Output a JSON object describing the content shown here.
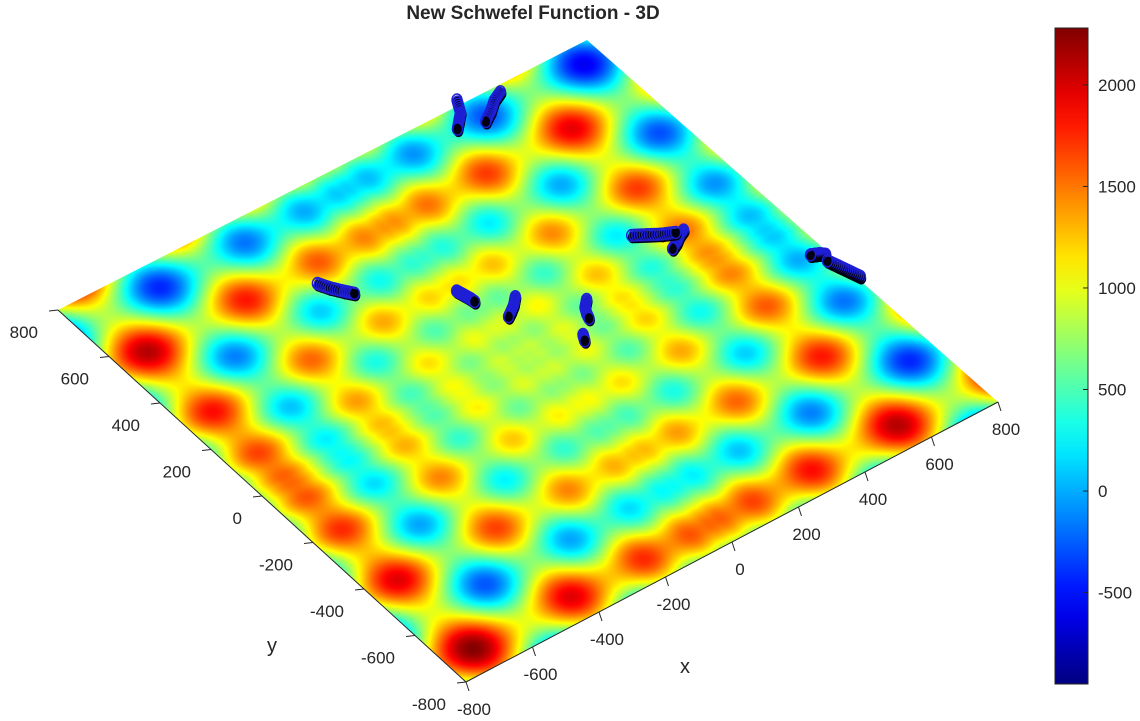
{
  "chart_data": {
    "type": "surface3d",
    "title": "New Schwefel Function - 3D",
    "xlabel": "x",
    "ylabel": "y",
    "xlim": [
      -800,
      800
    ],
    "ylim": [
      -800,
      800
    ],
    "xticks": [
      "-800",
      "-600",
      "-400",
      "-200",
      "0",
      "200",
      "400",
      "600",
      "800"
    ],
    "yticks": [
      "-800",
      "-600",
      "-400",
      "-200",
      "0",
      "200",
      "400",
      "600",
      "800"
    ],
    "colorbar": {
      "colormap": "jet",
      "range": [
        -950,
        2280
      ],
      "ticks": [
        "-500",
        "0",
        "500",
        "1000",
        "1500",
        "2000"
      ]
    },
    "view": "top-down, rotated 45°",
    "function": "f(x,y) = 837.9658 - x·sin(√|x|) - y·sin(√|y|)",
    "marker_color": "#1f1fd6",
    "trajectories": [
      {
        "points": [
          [
            400,
            800
          ],
          [
            380,
            760
          ],
          [
            360,
            740
          ],
          [
            340,
            720
          ]
        ]
      },
      {
        "points": [
          [
            500,
            760
          ],
          [
            470,
            745
          ],
          [
            440,
            720
          ],
          [
            410,
            700
          ]
        ]
      },
      {
        "points": [
          [
            -250,
            500
          ],
          [
            -235,
            470
          ],
          [
            -215,
            440
          ],
          [
            -200,
            420
          ]
        ]
      },
      {
        "points": [
          [
            0,
            280
          ],
          [
            5,
            260
          ],
          [
            10,
            240
          ],
          [
            12,
            225
          ]
        ]
      },
      {
        "points": [
          [
            100,
            180
          ],
          [
            80,
            160
          ],
          [
            60,
            145
          ],
          [
            45,
            135
          ]
        ]
      },
      {
        "points": [
          [
            230,
            70
          ],
          [
            210,
            50
          ],
          [
            200,
            30
          ],
          [
            195,
            15
          ]
        ]
      },
      {
        "points": [
          [
            150,
            -20
          ],
          [
            145,
            -30
          ],
          [
            140,
            -40
          ]
        ]
      },
      {
        "points": [
          [
            560,
            120
          ],
          [
            540,
            110
          ],
          [
            520,
            95
          ],
          [
            500,
            85
          ]
        ]
      },
      {
        "points": [
          [
            450,
            180
          ],
          [
            480,
            160
          ],
          [
            510,
            140
          ],
          [
            540,
            125
          ]
        ]
      },
      {
        "points": [
          [
            780,
            -150
          ],
          [
            770,
            -140
          ],
          [
            760,
            -135
          ],
          [
            750,
            -130
          ]
        ]
      },
      {
        "points": [
          [
            800,
            -260
          ],
          [
            790,
            -230
          ],
          [
            780,
            -200
          ],
          [
            770,
            -170
          ]
        ]
      }
    ]
  }
}
